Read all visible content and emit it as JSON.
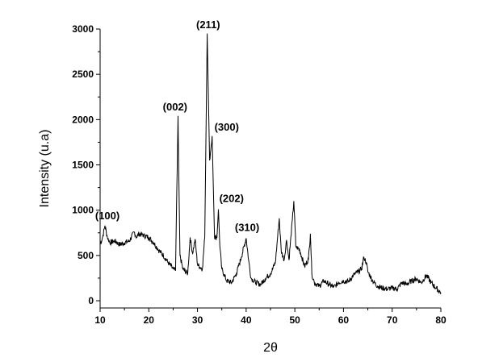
{
  "chart_data": {
    "type": "line",
    "xlabel": "2θ",
    "ylabel": "Intensity (u.a)",
    "xlim": [
      10,
      80
    ],
    "ylim": [
      -80,
      3000
    ],
    "x_ticks": [
      10,
      20,
      30,
      40,
      50,
      60,
      70,
      80
    ],
    "y_ticks": [
      0,
      500,
      1000,
      1500,
      2000,
      2500,
      3000
    ],
    "grid": false,
    "series": [
      {
        "color": "#000000",
        "points": [
          [
            10,
            620
          ],
          [
            10.5,
            700
          ],
          [
            11,
            830
          ],
          [
            11.5,
            700
          ],
          [
            12,
            640
          ],
          [
            13,
            660
          ],
          [
            14,
            620
          ],
          [
            15,
            640
          ],
          [
            16,
            660
          ],
          [
            17,
            760
          ],
          [
            17.5,
            700
          ],
          [
            18,
            740
          ],
          [
            19,
            720
          ],
          [
            20,
            700
          ],
          [
            21,
            640
          ],
          [
            22,
            560
          ],
          [
            23,
            500
          ],
          [
            24,
            420
          ],
          [
            25,
            350
          ],
          [
            25.5,
            330
          ],
          [
            26,
            2040
          ],
          [
            26.4,
            500
          ],
          [
            27,
            350
          ],
          [
            28,
            300
          ],
          [
            28.5,
            700
          ],
          [
            29,
            520
          ],
          [
            29.5,
            680
          ],
          [
            30,
            400
          ],
          [
            31,
            350
          ],
          [
            31.5,
            700
          ],
          [
            32,
            2950
          ],
          [
            32.5,
            1550
          ],
          [
            33,
            1820
          ],
          [
            33.5,
            700
          ],
          [
            34,
            700
          ],
          [
            34.3,
            1010
          ],
          [
            34.6,
            600
          ],
          [
            35,
            350
          ],
          [
            36,
            220
          ],
          [
            37,
            200
          ],
          [
            38,
            300
          ],
          [
            39,
            480
          ],
          [
            40,
            690
          ],
          [
            40.5,
            450
          ],
          [
            41,
            250
          ],
          [
            42,
            200
          ],
          [
            43,
            180
          ],
          [
            44,
            250
          ],
          [
            45,
            300
          ],
          [
            46,
            420
          ],
          [
            46.8,
            910
          ],
          [
            47.2,
            550
          ],
          [
            47.8,
            450
          ],
          [
            48.3,
            670
          ],
          [
            48.8,
            450
          ],
          [
            49.5,
            900
          ],
          [
            49.8,
            1100
          ],
          [
            50.2,
            600
          ],
          [
            51,
            560
          ],
          [
            52,
            380
          ],
          [
            52.8,
            460
          ],
          [
            53.2,
            740
          ],
          [
            53.5,
            300
          ],
          [
            54,
            200
          ],
          [
            55,
            160
          ],
          [
            56,
            220
          ],
          [
            57,
            180
          ],
          [
            58,
            150
          ],
          [
            59,
            200
          ],
          [
            60,
            220
          ],
          [
            61,
            210
          ],
          [
            62,
            280
          ],
          [
            63,
            320
          ],
          [
            63.7,
            350
          ],
          [
            64.2,
            480
          ],
          [
            64.7,
            420
          ],
          [
            65,
            320
          ],
          [
            66,
            220
          ],
          [
            67,
            160
          ],
          [
            68,
            140
          ],
          [
            69,
            130
          ],
          [
            70,
            140
          ],
          [
            71,
            130
          ],
          [
            72,
            200
          ],
          [
            73,
            180
          ],
          [
            74,
            220
          ],
          [
            75,
            240
          ],
          [
            76,
            200
          ],
          [
            77,
            280
          ],
          [
            78,
            200
          ],
          [
            79,
            140
          ],
          [
            80,
            90
          ]
        ]
      }
    ],
    "annotations": [
      {
        "text": "(100)",
        "x": 11.5,
        "y": 900
      },
      {
        "text": "(002)",
        "x": 25.4,
        "y": 2100
      },
      {
        "text": "(211)",
        "x": 32.2,
        "y": 3010
      },
      {
        "text": "(300)",
        "x": 36.0,
        "y": 1880
      },
      {
        "text": "(202)",
        "x": 37.0,
        "y": 1090
      },
      {
        "text": "(310)",
        "x": 40.2,
        "y": 770
      }
    ]
  }
}
